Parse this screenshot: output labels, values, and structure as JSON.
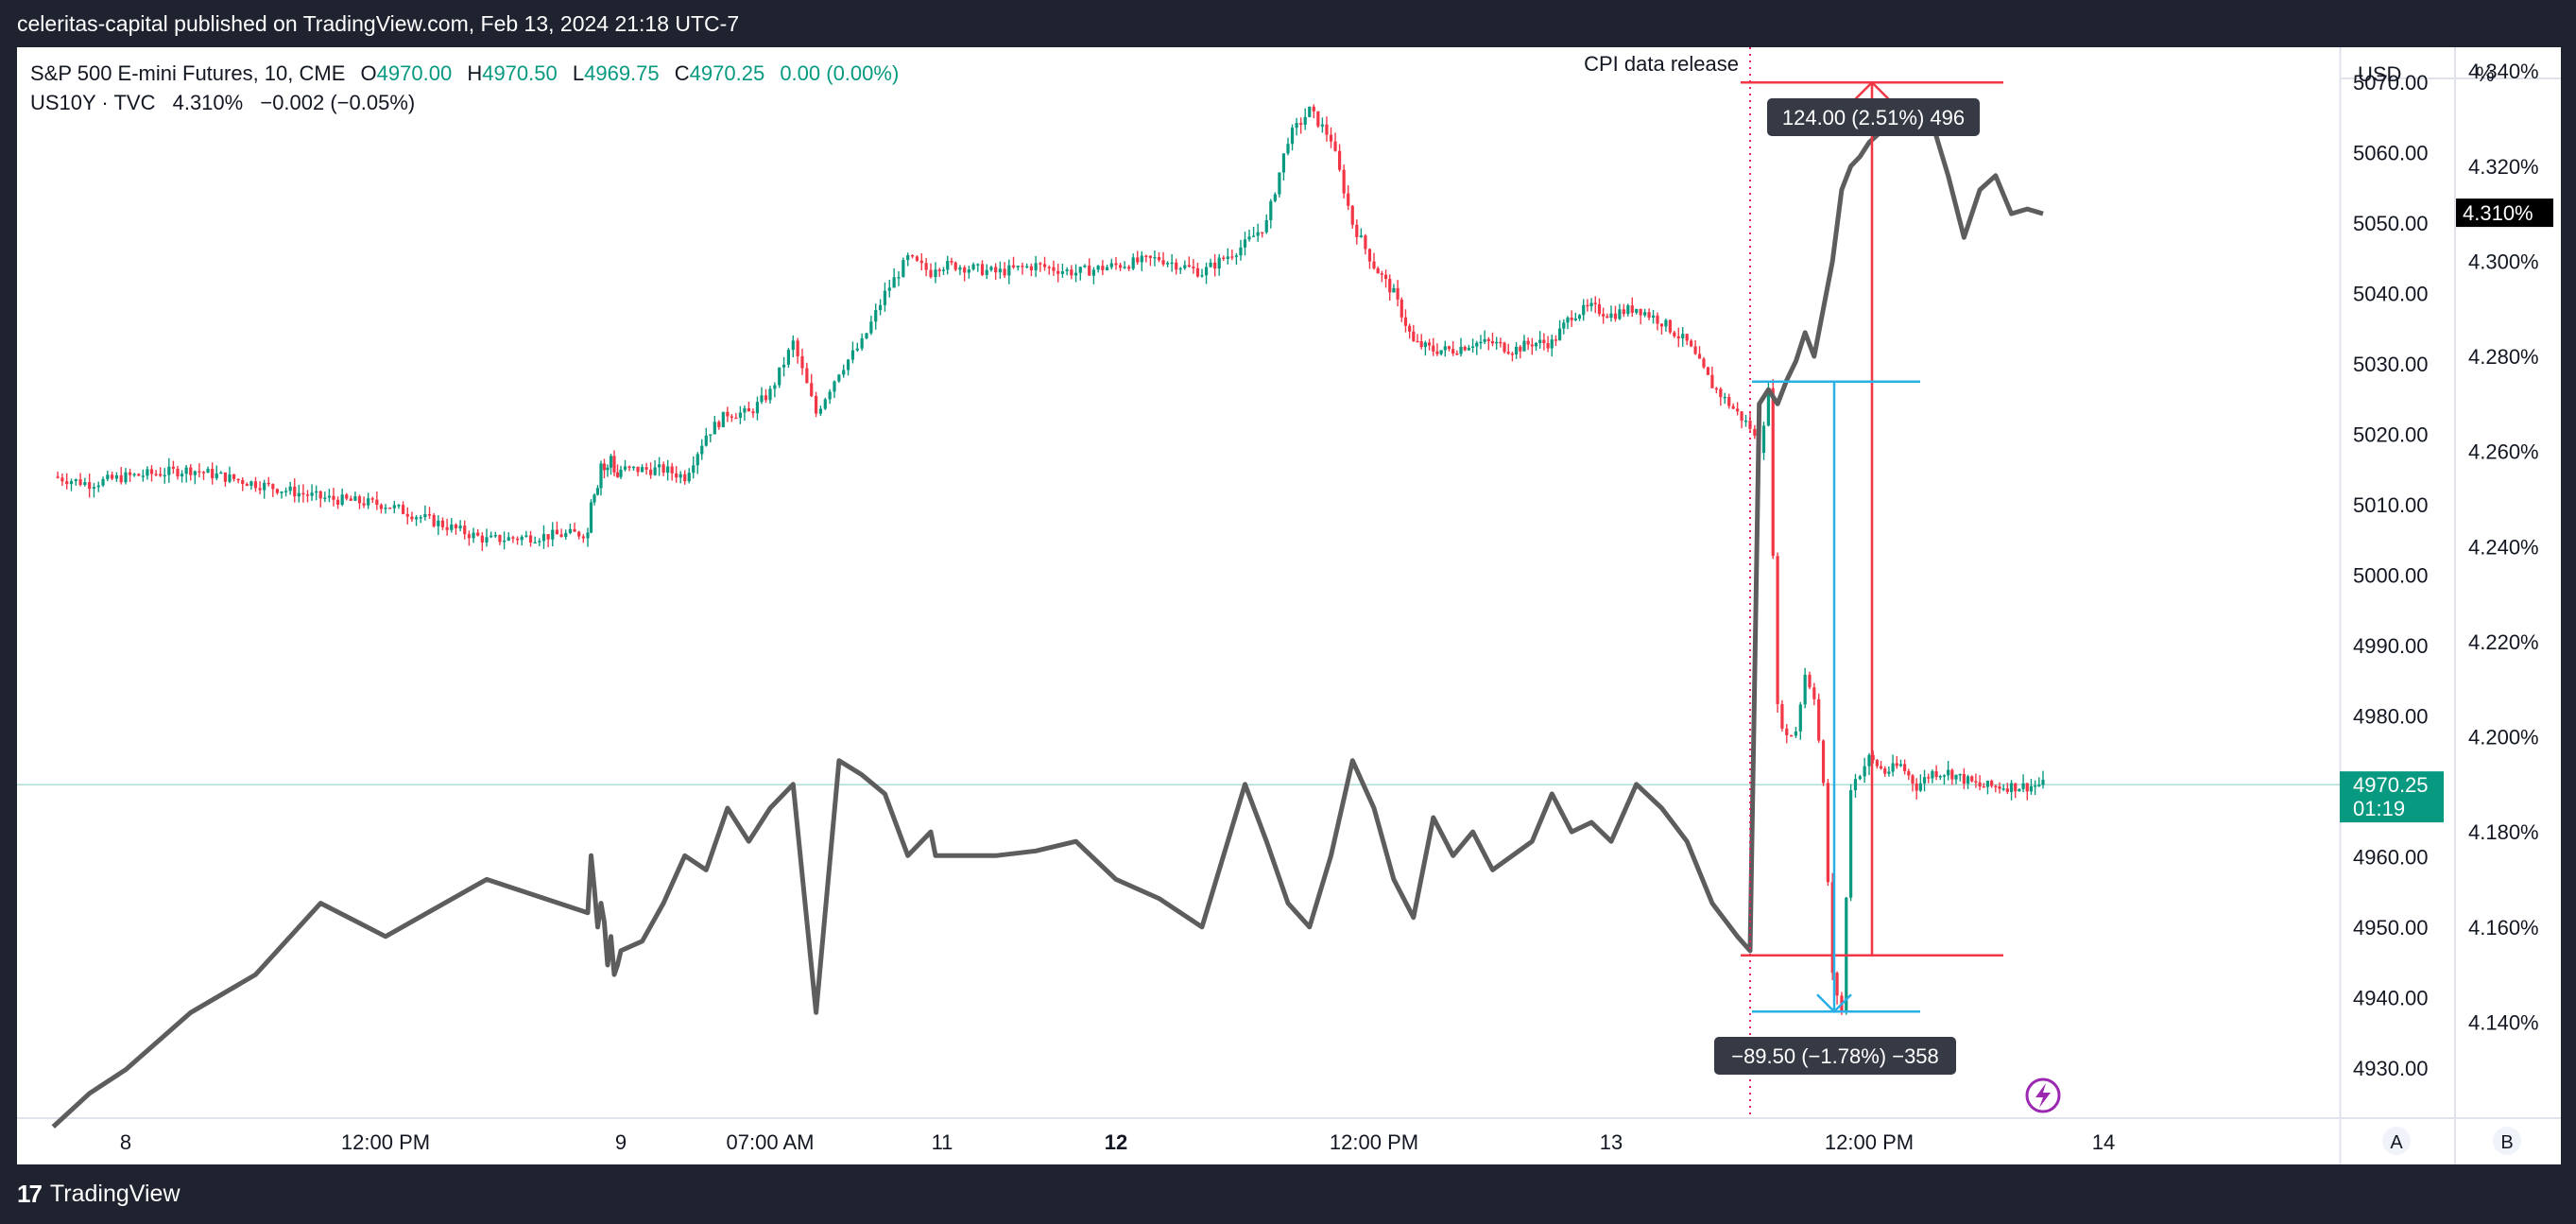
{
  "header": {
    "publish_line": "celeritas-capital published on TradingView.com, Feb 13, 2024 21:18 UTC-7"
  },
  "legend": {
    "line1": {
      "symbol": "S&P 500 E-mini Futures, 10, CME",
      "open_label": "O",
      "open_value": "4970.00",
      "high_label": "H",
      "high_value": "4970.50",
      "low_label": "L",
      "low_value": "4969.75",
      "close_label": "C",
      "close_value": "4970.25",
      "change": "0.00 (0.00%)"
    },
    "line2": {
      "symbol": "US10Y · TVC",
      "value": "4.310%",
      "change": "−0.002 (−0.05%)"
    }
  },
  "scale_headers": {
    "left": "USD",
    "right": "%"
  },
  "bottom_buttons": {
    "a": "A",
    "b": "B"
  },
  "annotations": {
    "event_label": "CPI data release",
    "up_measure": "124.00 (2.51%) 496",
    "down_measure": "−89.50 (−1.78%) −358"
  },
  "current_labels": {
    "es_price": "4970.25",
    "es_countdown": "01:19",
    "yield": "4.310%"
  },
  "footer": {
    "brand": "TradingView",
    "logo": "17"
  },
  "colors": {
    "background": "#ffffff",
    "frame": "#1f2330",
    "up": "#089981",
    "down": "#f23645",
    "yield_line": "#5d5d5d",
    "measure_red": "#f23645",
    "measure_blue": "#2ab0e6",
    "badge": "#363a45",
    "price_label": "#089981",
    "yield_label_bg": "#000000"
  },
  "chart_data": {
    "type": "line",
    "title": "S&P 500 E-mini Futures, 10, CME",
    "x_ticks": [
      "8",
      "12:00 PM",
      "9",
      "07:00 AM",
      "11",
      "12",
      "12:00 PM",
      "13",
      "12:00 PM",
      "14"
    ],
    "left_axis": {
      "unit": "USD",
      "ticks": [
        "5070.00",
        "5060.00",
        "5050.00",
        "5040.00",
        "5030.00",
        "5020.00",
        "5010.00",
        "5000.00",
        "4990.00",
        "4980.00",
        "4970.00",
        "4960.00",
        "4950.00",
        "4940.00",
        "4930.00"
      ],
      "range": [
        4923,
        5075
      ]
    },
    "right_axis": {
      "unit": "%",
      "ticks": [
        "4.340%",
        "4.320%",
        "4.300%",
        "4.280%",
        "4.260%",
        "4.240%",
        "4.220%",
        "4.200%",
        "4.180%",
        "4.160%",
        "4.140%"
      ],
      "range": [
        4.12,
        4.345
      ]
    },
    "series": [
      {
        "name": "S&P 500 E-mini Futures",
        "kind": "candlestick",
        "axis": "left",
        "x": [
          "Feb 8 06:00",
          "Feb 8 07:00",
          "Feb 8 08:00",
          "Feb 8 09:00",
          "Feb 8 10:00",
          "Feb 8 11:00",
          "Feb 8 12:00",
          "Feb 8 13:00",
          "Feb 8 14:00",
          "Feb 8 15:00",
          "Feb 8 16:00",
          "Feb 8 17:00",
          "Feb 8 18:00",
          "Feb 8 19:00",
          "Feb 8 20:00",
          "Feb 8 21:00",
          "Feb 8 22:00",
          "Feb 8 23:00",
          "Feb 9 00:00",
          "Feb 9 01:00",
          "Feb 9 02:00",
          "Feb 9 03:00",
          "Feb 9 04:00",
          "Feb 9 05:00",
          "Feb 9 06:00",
          "Feb 9 07:00",
          "Feb 9 08:00",
          "Feb 9 09:00",
          "Feb 9 10:00",
          "Feb 9 11:00",
          "Feb 9 12:00",
          "Feb 9 13:00",
          "Feb 9 14:00",
          "Feb 11 15:00",
          "Feb 11 16:00",
          "Feb 11 18:00",
          "Feb 11 20:00",
          "Feb 11 22:00",
          "Feb 12 00:00",
          "Feb 12 02:00",
          "Feb 12 04:00",
          "Feb 12 06:00",
          "Feb 12 07:00",
          "Feb 12 08:00",
          "Feb 12 09:00",
          "Feb 12 10:00",
          "Feb 12 11:00",
          "Feb 12 12:00",
          "Feb 12 13:00",
          "Feb 12 14:00",
          "Feb 12 15:00",
          "Feb 12 16:00",
          "Feb 12 17:00",
          "Feb 12 18:00",
          "Feb 12 19:00",
          "Feb 12 20:00",
          "Feb 12 21:00",
          "Feb 12 22:00",
          "Feb 12 23:00",
          "Feb 13 00:00",
          "Feb 13 01:00",
          "Feb 13 02:00",
          "Feb 13 03:00",
          "Feb 13 04:00",
          "Feb 13 05:00",
          "Feb 13 05:30",
          "Feb 13 06:00",
          "Feb 13 06:30",
          "Feb 13 07:00",
          "Feb 13 07:30",
          "Feb 13 08:00",
          "Feb 13 08:30",
          "Feb 13 09:00",
          "Feb 13 09:30",
          "Feb 13 10:00",
          "Feb 13 10:30",
          "Feb 13 11:00",
          "Feb 13 11:30",
          "Feb 13 12:00",
          "Feb 13 12:30",
          "Feb 13 13:00",
          "Feb 13 13:30",
          "Feb 13 14:00",
          "Feb 13 14:30",
          "Feb 13 15:00",
          "Feb 13 15:30",
          "Feb 13 16:00",
          "Feb 13 16:30",
          "Feb 13 17:00",
          "Feb 13 17:30"
        ],
        "close": [
          5014,
          5013,
          5014,
          5015,
          5013,
          5011,
          5010,
          5005,
          5006,
          5011,
          5012,
          5013,
          5016,
          5015,
          5015,
          5017,
          5015,
          5014,
          5015,
          5015,
          5015,
          5014,
          5020,
          5023,
          5023,
          5026,
          5033,
          5023,
          5029,
          5033,
          5040,
          5045,
          5043,
          5044,
          5044,
          5043,
          5044,
          5043,
          5044,
          5045,
          5043,
          5047,
          5050,
          5062,
          5066,
          5062,
          5050,
          5044,
          5040,
          5033,
          5032,
          5032,
          5033,
          5033,
          5032,
          5033,
          5033,
          5037,
          5038,
          5037,
          5038,
          5036,
          5033,
          5027,
          5023,
          5021,
          5018,
          5026,
          4981,
          4977,
          4978,
          4986,
          4983,
          4970,
          4943,
          4938,
          4970,
          4972,
          4974,
          4972,
          4973,
          4970,
          4972,
          4972,
          4971,
          4970,
          4970,
          4970,
          4970,
          4970.25
        ],
        "color": "#089981"
      },
      {
        "name": "US10Y",
        "kind": "line",
        "axis": "right",
        "x": [
          "Feb 8 06:00",
          "Feb 8 07:00",
          "Feb 8 08:00",
          "Feb 8 09:00",
          "Feb 8 10:00",
          "Feb 8 11:00",
          "Feb 8 12:00",
          "Feb 8 13:00",
          "Feb 8 14:00",
          "Feb 8 15:00",
          "Feb 8 16:00",
          "Feb 8 17:00",
          "Feb 8 18:00",
          "Feb 8 19:00",
          "Feb 8 20:00",
          "Feb 8 21:00",
          "Feb 8 22:00",
          "Feb 8 23:00",
          "Feb 9 00:00",
          "Feb 9 01:00",
          "Feb 9 02:00",
          "Feb 9 03:00",
          "Feb 9 04:00",
          "Feb 9 05:00",
          "Feb 9 06:00",
          "Feb 9 07:00",
          "Feb 9 08:00",
          "Feb 9 09:00",
          "Feb 9 10:00",
          "Feb 9 11:00",
          "Feb 9 12:00",
          "Feb 9 13:00",
          "Feb 9 14:00",
          "Feb 11 15:00",
          "Feb 11 16:00",
          "Feb 11 18:00",
          "Feb 11 20:00",
          "Feb 11 22:00",
          "Feb 12 00:00",
          "Feb 12 02:00",
          "Feb 12 04:00",
          "Feb 12 06:00",
          "Feb 12 07:00",
          "Feb 12 08:00",
          "Feb 12 09:00",
          "Feb 12 10:00",
          "Feb 12 11:00",
          "Feb 12 12:00",
          "Feb 12 13:00",
          "Feb 12 14:00",
          "Feb 12 15:00",
          "Feb 12 16:00",
          "Feb 12 17:00",
          "Feb 12 18:00",
          "Feb 12 19:00",
          "Feb 12 20:00",
          "Feb 12 21:00",
          "Feb 12 22:00",
          "Feb 12 23:00",
          "Feb 13 00:00",
          "Feb 13 01:00",
          "Feb 13 02:00",
          "Feb 13 03:00",
          "Feb 13 04:00",
          "Feb 13 05:00",
          "Feb 13 05:30",
          "Feb 13 06:00",
          "Feb 13 06:30",
          "Feb 13 07:00",
          "Feb 13 07:30",
          "Feb 13 08:00",
          "Feb 13 08:30",
          "Feb 13 09:00",
          "Feb 13 09:30",
          "Feb 13 10:00",
          "Feb 13 10:30",
          "Feb 13 11:00",
          "Feb 13 11:30",
          "Feb 13 12:00",
          "Feb 13 12:30",
          "Feb 13 13:00",
          "Feb 13 13:30",
          "Feb 13 14:00",
          "Feb 13 14:30",
          "Feb 13 15:00",
          "Feb 13 15:30",
          "Feb 13 16:00",
          "Feb 13 16:30",
          "Feb 13 17:00",
          "Feb 13 17:30"
        ],
        "values": [
          4.118,
          4.125,
          4.13,
          4.142,
          4.15,
          4.165,
          4.158,
          4.17,
          4.163,
          4.175,
          4.168,
          4.16,
          4.165,
          4.161,
          4.152,
          4.158,
          4.15,
          4.152,
          4.155,
          4.157,
          4.165,
          4.175,
          4.172,
          4.185,
          4.178,
          4.185,
          4.19,
          4.142,
          4.195,
          4.192,
          4.188,
          4.175,
          4.18,
          4.175,
          4.175,
          4.175,
          4.176,
          4.178,
          4.17,
          4.166,
          4.16,
          4.19,
          4.178,
          4.165,
          4.16,
          4.175,
          4.195,
          4.185,
          4.17,
          4.162,
          4.183,
          4.175,
          4.18,
          4.172,
          4.175,
          4.178,
          4.188,
          4.18,
          4.182,
          4.178,
          4.19,
          4.185,
          4.178,
          4.165,
          4.158,
          4.155,
          4.27,
          4.273,
          4.27,
          4.275,
          4.279,
          4.285,
          4.28,
          4.29,
          4.3,
          4.315,
          4.32,
          4.322,
          4.325,
          4.328,
          4.33,
          4.33,
          4.329,
          4.318,
          4.305,
          4.315,
          4.318,
          4.31,
          4.311,
          4.31
        ]
      }
    ],
    "event_marker": {
      "x": "Feb 13 05:30",
      "label": "CPI data release"
    },
    "measurements": [
      {
        "from": 4946,
        "to": 5070,
        "label": "124.00 (2.51%) 496"
      },
      {
        "from": 5027.5,
        "to": 4938,
        "label": "−89.50 (−1.78%) −358"
      }
    ],
    "grid": false
  }
}
